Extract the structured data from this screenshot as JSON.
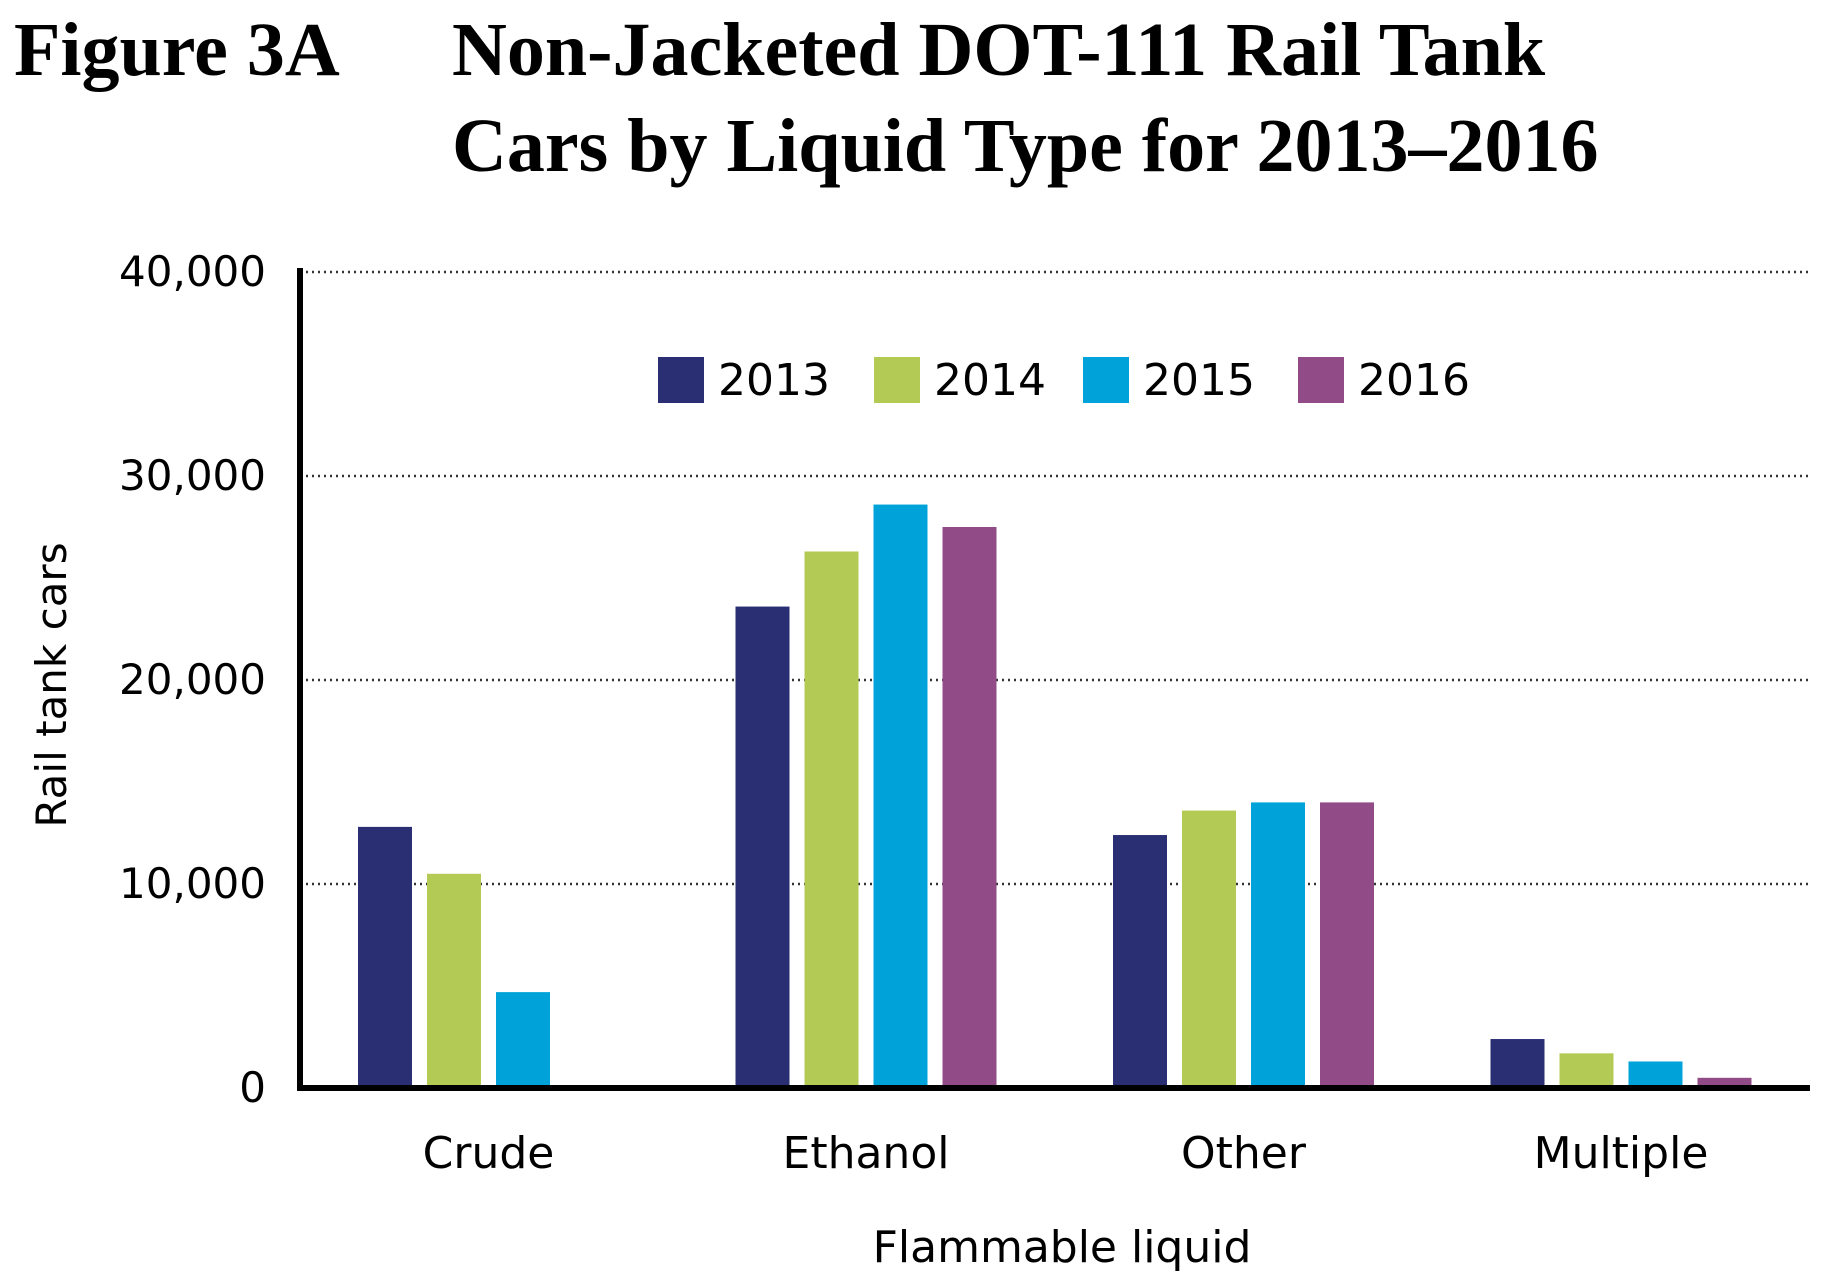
{
  "figure": {
    "label": "Figure 3A",
    "title_lines": [
      "Non-Jacketed DOT-111 Rail Tank",
      "Cars by Liquid Type for 2013–2016"
    ]
  },
  "chart_data": {
    "type": "bar",
    "title": "Non-Jacketed DOT-111 Rail Tank Cars by Liquid Type for 2013–2016",
    "xlabel": "Flammable liquid",
    "ylabel": "Rail tank cars",
    "categories": [
      "Crude",
      "Ethanol",
      "Other",
      "Multiple"
    ],
    "series": [
      {
        "name": "2013",
        "color": "#2a2e72",
        "values": [
          12800,
          23600,
          12400,
          2400
        ]
      },
      {
        "name": "2014",
        "color": "#b3cb55",
        "values": [
          10500,
          26300,
          13600,
          1700
        ]
      },
      {
        "name": "2015",
        "color": "#00a3d9",
        "values": [
          4700,
          28600,
          14000,
          1300
        ]
      },
      {
        "name": "2016",
        "color": "#914c87",
        "values": [
          0,
          27500,
          14000,
          500
        ]
      }
    ],
    "ylim": [
      0,
      40000
    ],
    "yticks": [
      0,
      10000,
      20000,
      30000,
      40000
    ],
    "ytick_labels": [
      "0",
      "10,000",
      "20,000",
      "30,000",
      "40,000"
    ],
    "grid": "dotted horizontal at ticks",
    "legend": "top-center"
  }
}
